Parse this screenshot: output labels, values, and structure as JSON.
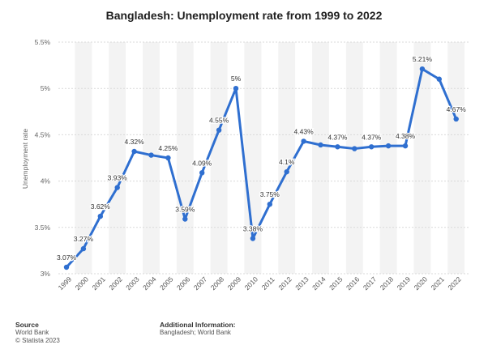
{
  "chart_data": {
    "type": "line",
    "title": "Bangladesh: Unemployment rate from 1999 to 2022",
    "xlabel": "",
    "ylabel": "Unemployment rate",
    "ylim": [
      3,
      5.5
    ],
    "yticks": [
      "3%",
      "3.5%",
      "4%",
      "4.5%",
      "5%",
      "5.5%"
    ],
    "categories": [
      "1999",
      "2000",
      "2001",
      "2002",
      "2003",
      "2004",
      "2005",
      "2006",
      "2007",
      "2008",
      "2009",
      "2010",
      "2011",
      "2012",
      "2013",
      "2014",
      "2015",
      "2016",
      "2017",
      "2018",
      "2019",
      "2020",
      "2021",
      "2022"
    ],
    "series": [
      {
        "name": "Unemployment rate",
        "values": [
          3.07,
          3.27,
          3.62,
          3.93,
          4.32,
          4.28,
          4.25,
          3.59,
          4.09,
          4.55,
          5.0,
          3.38,
          3.75,
          4.1,
          4.43,
          4.39,
          4.37,
          4.35,
          4.37,
          4.38,
          4.38,
          5.21,
          5.1,
          4.67
        ],
        "labels": [
          "3.07%",
          "3.27%",
          "3.62%",
          "3.93%",
          "4.32%",
          "",
          "4.25%",
          "3.59%",
          "4.09%",
          "4.55%",
          "5%",
          "3.38%",
          "3.75%",
          "4.1%",
          "4.43%",
          "",
          "4.37%",
          "",
          "4.37%",
          "",
          "4.38%",
          "5.21%",
          "",
          "4.67%"
        ]
      }
    ],
    "color": "#2f6fd0",
    "grid": true
  },
  "footer": {
    "source_heading": "Source",
    "source_lines": [
      "World Bank",
      "© Statista 2023"
    ],
    "info_heading": "Additional Information:",
    "info_line": "Bangladesh; World Bank"
  }
}
